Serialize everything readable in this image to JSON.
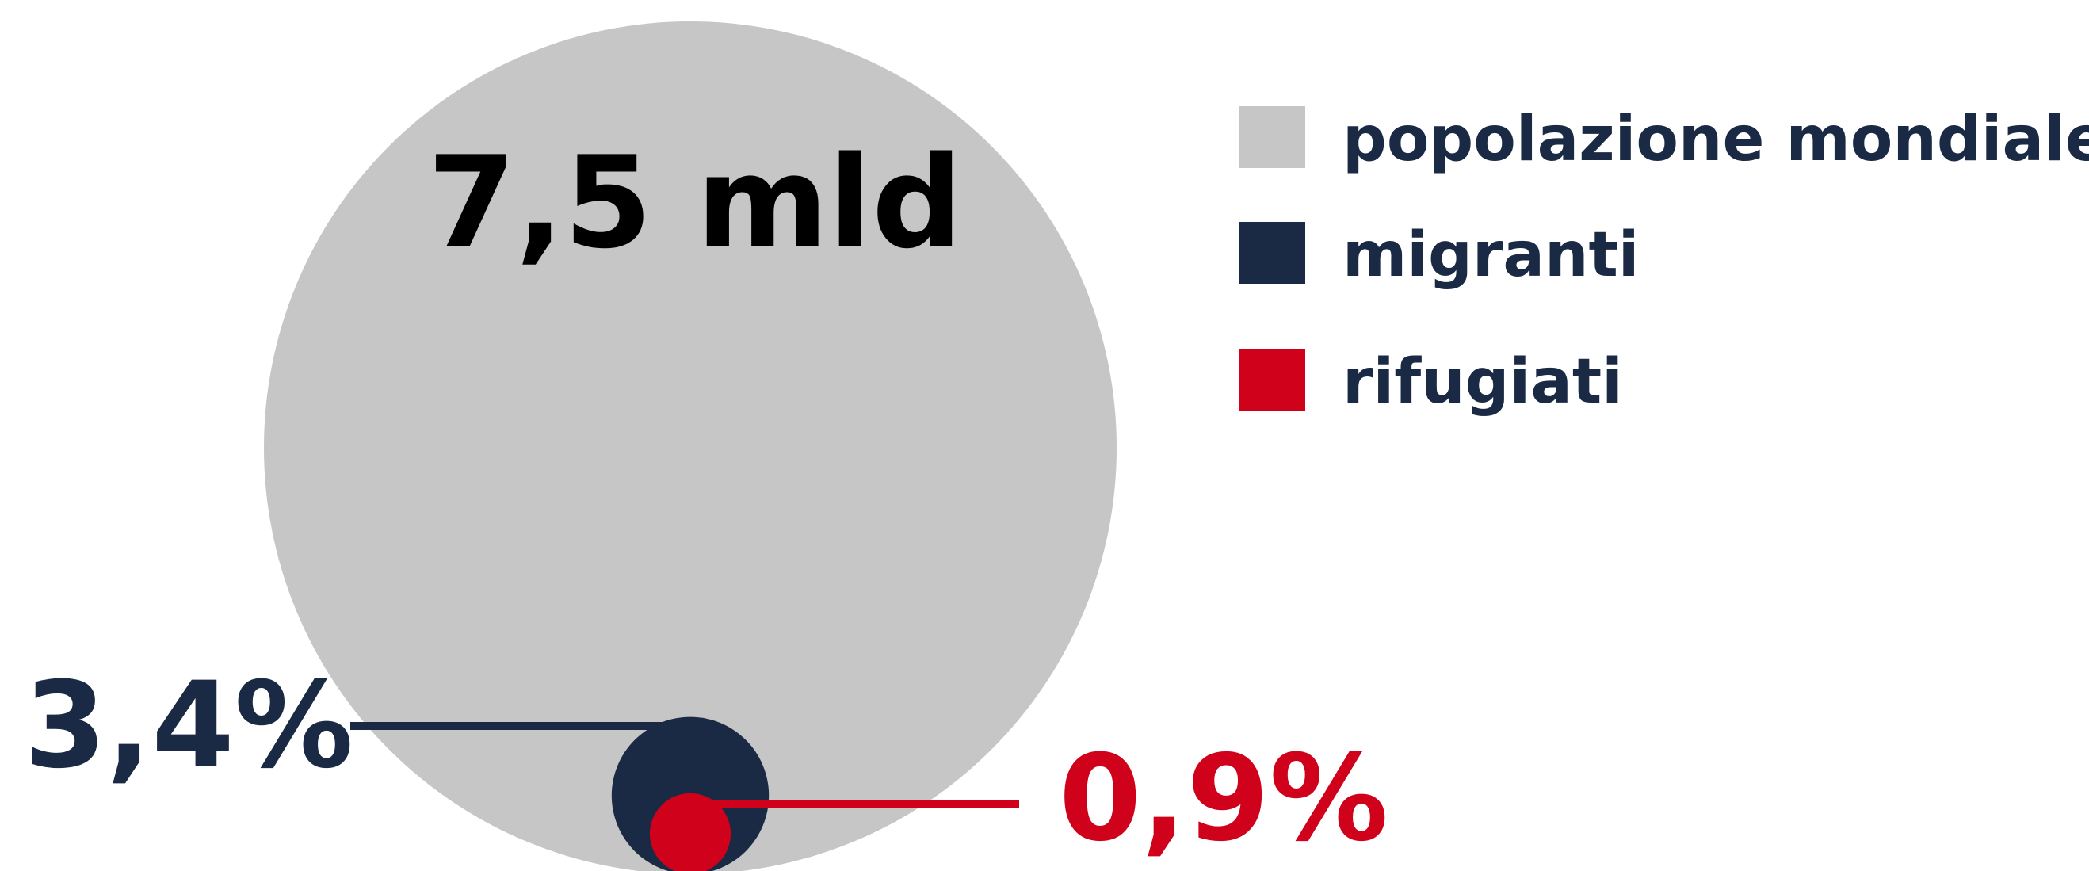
{
  "chart_data": {
    "type": "bubble",
    "categories": [
      "popolazione mondiale",
      "migranti",
      "rifugiati"
    ],
    "values": [
      7.5,
      3.4,
      0.9
    ],
    "value_labels": [
      "7,5 mld",
      "3,4%",
      "0,9%"
    ],
    "colors": [
      "#c6c6c6",
      "#1b2a44",
      "#d0021b"
    ]
  }
}
